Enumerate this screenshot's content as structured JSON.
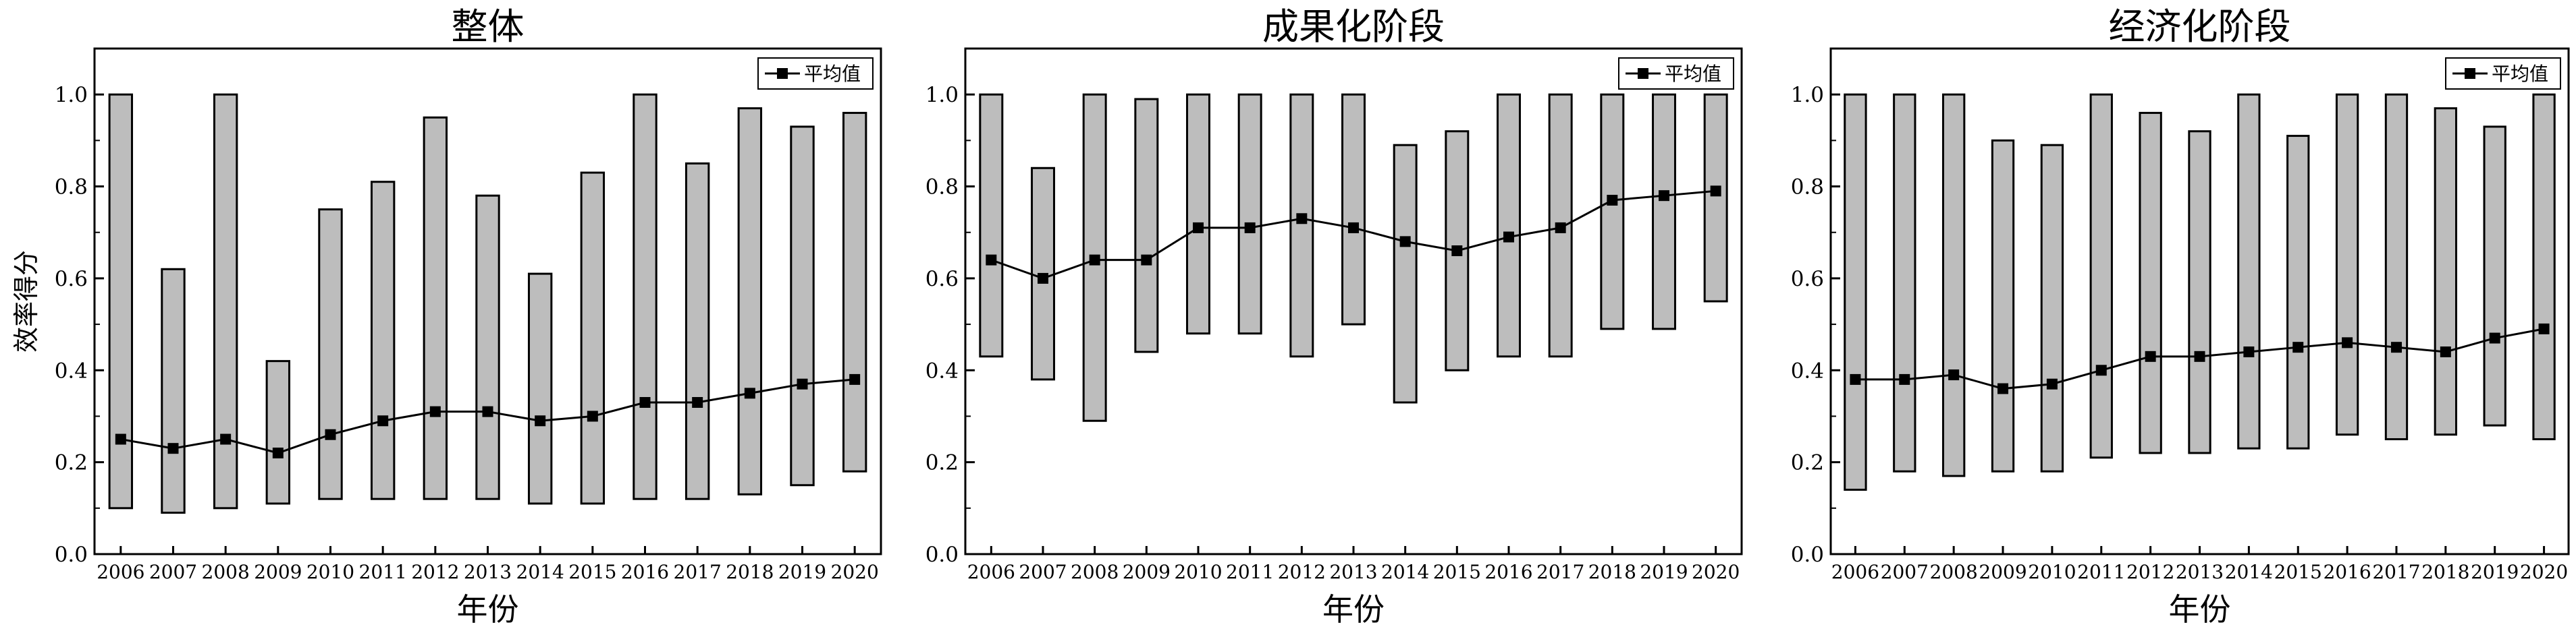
{
  "chart_data": [
    {
      "type": "bar",
      "subtype": "floating-range-with-mean-line",
      "title": "整体",
      "xlabel": "年份",
      "ylabel": "效率得分",
      "categories": [
        "2006",
        "2007",
        "2008",
        "2009",
        "2010",
        "2011",
        "2012",
        "2013",
        "2014",
        "2015",
        "2016",
        "2017",
        "2018",
        "2019",
        "2020"
      ],
      "ylim": [
        0,
        1.1
      ],
      "yticks": [
        0.0,
        0.2,
        0.4,
        0.6,
        0.8,
        1.0
      ],
      "ytick_labels": [
        "0.0",
        "0.2",
        "0.4",
        "0.6",
        "0.8",
        "1.0"
      ],
      "min": [
        0.1,
        0.09,
        0.1,
        0.11,
        0.12,
        0.12,
        0.12,
        0.12,
        0.11,
        0.11,
        0.12,
        0.12,
        0.13,
        0.15,
        0.18
      ],
      "max": [
        1.0,
        0.62,
        1.0,
        0.42,
        0.75,
        0.81,
        0.95,
        0.78,
        0.61,
        0.83,
        1.0,
        0.85,
        0.97,
        0.93,
        0.96
      ],
      "series": [
        {
          "name": "平均值",
          "values": [
            0.25,
            0.23,
            0.25,
            0.22,
            0.26,
            0.29,
            0.31,
            0.31,
            0.29,
            0.3,
            0.33,
            0.33,
            0.35,
            0.37,
            0.38
          ]
        }
      ],
      "legend": "top-right",
      "grid": false
    },
    {
      "type": "bar",
      "subtype": "floating-range-with-mean-line",
      "title": "成果化阶段",
      "xlabel": "年份",
      "ylabel": "",
      "categories": [
        "2006",
        "2007",
        "2008",
        "2009",
        "2010",
        "2011",
        "2012",
        "2013",
        "2014",
        "2015",
        "2016",
        "2017",
        "2018",
        "2019",
        "2020"
      ],
      "ylim": [
        0,
        1.1
      ],
      "yticks": [
        0.0,
        0.2,
        0.4,
        0.6,
        0.8,
        1.0
      ],
      "ytick_labels": [
        "0.0",
        "0.2",
        "0.4",
        "0.6",
        "0.8",
        "1.0"
      ],
      "min": [
        0.43,
        0.38,
        0.29,
        0.44,
        0.48,
        0.48,
        0.43,
        0.5,
        0.33,
        0.4,
        0.43,
        0.43,
        0.49,
        0.49,
        0.55
      ],
      "max": [
        1.0,
        0.84,
        1.0,
        0.99,
        1.0,
        1.0,
        1.0,
        1.0,
        0.89,
        0.92,
        1.0,
        1.0,
        1.0,
        1.0,
        1.0
      ],
      "series": [
        {
          "name": "平均值",
          "values": [
            0.64,
            0.6,
            0.64,
            0.64,
            0.71,
            0.71,
            0.73,
            0.71,
            0.68,
            0.66,
            0.69,
            0.71,
            0.77,
            0.78,
            0.79
          ]
        }
      ],
      "legend": "top-right",
      "grid": false
    },
    {
      "type": "bar",
      "subtype": "floating-range-with-mean-line",
      "title": "经济化阶段",
      "xlabel": "年份",
      "ylabel": "",
      "categories": [
        "2006",
        "2007",
        "2008",
        "2009",
        "2010",
        "2011",
        "2012",
        "2013",
        "2014",
        "2015",
        "2016",
        "2017",
        "2018",
        "2019",
        "2020"
      ],
      "ylim": [
        0,
        1.1
      ],
      "yticks": [
        0.0,
        0.2,
        0.4,
        0.6,
        0.8,
        1.0
      ],
      "ytick_labels": [
        "0.0",
        "0.2",
        "0.4",
        "0.6",
        "0.8",
        "1.0"
      ],
      "min": [
        0.14,
        0.18,
        0.17,
        0.18,
        0.18,
        0.21,
        0.22,
        0.22,
        0.23,
        0.23,
        0.26,
        0.25,
        0.26,
        0.28,
        0.25
      ],
      "max": [
        1.0,
        1.0,
        1.0,
        0.9,
        0.89,
        1.0,
        0.96,
        0.92,
        1.0,
        0.91,
        1.0,
        1.0,
        0.97,
        0.93,
        1.0
      ],
      "series": [
        {
          "name": "平均值",
          "values": [
            0.38,
            0.38,
            0.39,
            0.36,
            0.37,
            0.4,
            0.43,
            0.43,
            0.44,
            0.45,
            0.46,
            0.45,
            0.44,
            0.47,
            0.49
          ]
        }
      ],
      "legend": "top-right",
      "grid": false
    }
  ],
  "colors": {
    "bar_fill": "#bdbdbd",
    "stroke": "#000000",
    "background": "#ffffff"
  }
}
